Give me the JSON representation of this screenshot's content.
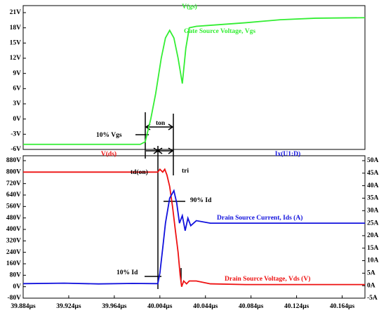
{
  "chart_data": [
    {
      "type": "line",
      "xlim": [
        39.884,
        40.184
      ],
      "ylim": [
        -6,
        21
      ],
      "yticks": [
        {
          "value": 21,
          "label": "21V"
        },
        {
          "value": 18,
          "label": "18V"
        },
        {
          "value": 15,
          "label": "15V"
        },
        {
          "value": 12,
          "label": "12V"
        },
        {
          "value": 9,
          "label": "9V"
        },
        {
          "value": 6,
          "label": "6V"
        },
        {
          "value": 3,
          "label": "3V"
        },
        {
          "value": 0,
          "label": "0V"
        },
        {
          "value": -3,
          "label": "-3V"
        },
        {
          "value": -6,
          "label": "-6V"
        }
      ],
      "series": [
        {
          "name": "V(gs)",
          "color": "#33ee33",
          "x": [
            39.884,
            39.9868,
            39.9911,
            39.996,
            40.0003,
            40.0052,
            40.0089,
            40.0126,
            40.0163,
            40.02,
            40.0237,
            40.0268,
            40.0298,
            40.036,
            40.0483,
            40.0791,
            40.1098,
            40.1406,
            40.184
          ],
          "values": [
            -5,
            -5,
            -4.5,
            0,
            5,
            12,
            16,
            17.5,
            16,
            12,
            7,
            14,
            18,
            18.3,
            18.5,
            19,
            19.6,
            19.9,
            20
          ]
        }
      ],
      "annotations": [
        {
          "text": "Gate Source Voltage, Vgs",
          "color": "#33ee33"
        },
        {
          "text": "10% Vgs",
          "color": "#000000"
        },
        {
          "text": "ton",
          "color": "#000000"
        }
      ]
    },
    {
      "type": "line",
      "xlim": [
        39.884,
        40.184
      ],
      "xticks": [
        {
          "value": 39.884,
          "label": "39.884µs"
        },
        {
          "value": 39.924,
          "label": "39.924µs"
        },
        {
          "value": 39.964,
          "label": "39.964µs"
        },
        {
          "value": 40.004,
          "label": "40.004µs"
        },
        {
          "value": 40.044,
          "label": "40.044µs"
        },
        {
          "value": 40.084,
          "label": "40.084µs"
        },
        {
          "value": 40.124,
          "label": "40.124µs"
        },
        {
          "value": 40.164,
          "label": "40.164µs"
        }
      ],
      "ylim": [
        -80,
        880
      ],
      "yticks": [
        {
          "value": 880,
          "label": "880V"
        },
        {
          "value": 800,
          "label": "800V"
        },
        {
          "value": 720,
          "label": "720V"
        },
        {
          "value": 640,
          "label": "640V"
        },
        {
          "value": 560,
          "label": "560V"
        },
        {
          "value": 480,
          "label": "480V"
        },
        {
          "value": 400,
          "label": "400V"
        },
        {
          "value": 320,
          "label": "320V"
        },
        {
          "value": 240,
          "label": "240V"
        },
        {
          "value": 160,
          "label": "160V"
        },
        {
          "value": 80,
          "label": "80V"
        },
        {
          "value": 0,
          "label": "0V"
        },
        {
          "value": -80,
          "label": "-80V"
        }
      ],
      "y2lim": [
        -5,
        50
      ],
      "y2ticks": [
        {
          "value": 50,
          "label": "50A"
        },
        {
          "value": 45,
          "label": "45A"
        },
        {
          "value": 40,
          "label": "40A"
        },
        {
          "value": 35,
          "label": "35A"
        },
        {
          "value": 30,
          "label": "30A"
        },
        {
          "value": 25,
          "label": "25A"
        },
        {
          "value": 20,
          "label": "20A"
        },
        {
          "value": 15,
          "label": "15A"
        },
        {
          "value": 10,
          "label": "10A"
        },
        {
          "value": 5,
          "label": "5A"
        },
        {
          "value": 0,
          "label": "0A"
        },
        {
          "value": -5,
          "label": "-5A"
        }
      ],
      "series": [
        {
          "name": "V(ds)",
          "color": "#ee1111",
          "x": [
            39.884,
            40.0022,
            40.004,
            40.0065,
            40.0083,
            40.0102,
            40.0126,
            40.0151,
            40.0175,
            40.02,
            40.0218,
            40.0231,
            40.0249,
            40.0274,
            40.0298,
            40.036,
            40.0483,
            40.0791,
            40.184
          ],
          "values": [
            800,
            800,
            820,
            800,
            820,
            780,
            700,
            560,
            400,
            240,
            80,
            0,
            40,
            20,
            40,
            40,
            20,
            15,
            15
          ]
        },
        {
          "name": "Ix(U1:D)",
          "color": "#1111dd",
          "axis": "y2",
          "x": [
            39.884,
            39.92,
            39.95,
            39.98,
            40.0022,
            40.004,
            40.0065,
            40.0089,
            40.0126,
            40.0163,
            40.0188,
            40.0212,
            40.0237,
            40.0262,
            40.0286,
            40.0311,
            40.036,
            40.0483,
            40.184
          ],
          "values": [
            0.8,
            1.0,
            0.7,
            0.9,
            0.8,
            5,
            15,
            25,
            35,
            38,
            33,
            25,
            28,
            22,
            27,
            24,
            26,
            25,
            25
          ]
        }
      ],
      "annotations": [
        {
          "text": "td(on)",
          "color": "#000000"
        },
        {
          "text": "tri",
          "color": "#000000"
        },
        {
          "text": "90% Id",
          "color": "#000000"
        },
        {
          "text": "Drain Source Current, Ids (A)",
          "color": "#1111dd"
        },
        {
          "text": "10% Id",
          "color": "#000000"
        },
        {
          "text": "Drain Source Voltage, Vds (V)",
          "color": "#ee1111"
        }
      ]
    }
  ]
}
